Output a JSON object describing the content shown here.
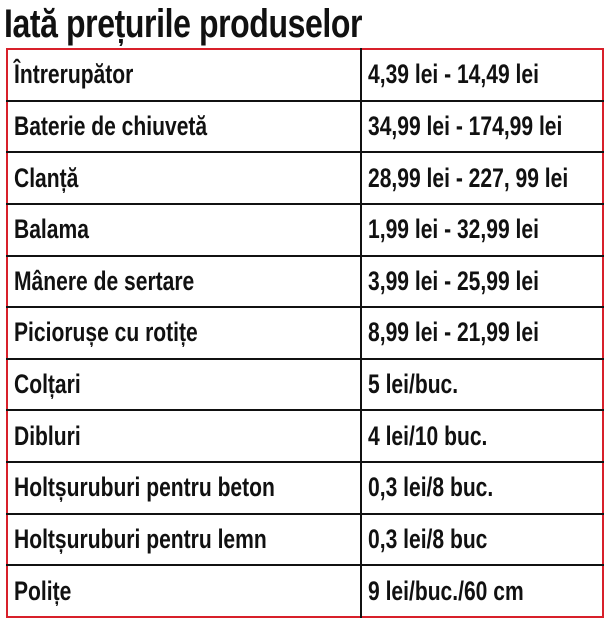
{
  "header": {
    "title": "Iată prețurile produselor"
  },
  "table": {
    "rows": [
      [
        "Întrerupător",
        "4,39 lei - 14,49 lei"
      ],
      [
        "Baterie de chiuvetă",
        "34,99 lei - 174,99 lei"
      ],
      [
        "Clanță",
        "28,99 lei - 227, 99 lei"
      ],
      [
        "Balama",
        "1,99 lei - 32,99 lei"
      ],
      [
        "Mânere de sertare",
        "3,99 lei - 25,99 lei"
      ],
      [
        "Piciorușe cu rotițe",
        "8,99 lei - 21,99 lei"
      ],
      [
        "Colțari",
        "5 lei/buc."
      ],
      [
        "Dibluri",
        "4 lei/10 buc."
      ],
      [
        "Holtșuruburi pentru beton",
        "0,3 lei/8 buc."
      ],
      [
        "Holtșuruburi pentru lemn",
        "0,3 lei/8 buc"
      ],
      [
        "Polițe",
        "9 lei/buc./60 cm"
      ]
    ]
  }
}
